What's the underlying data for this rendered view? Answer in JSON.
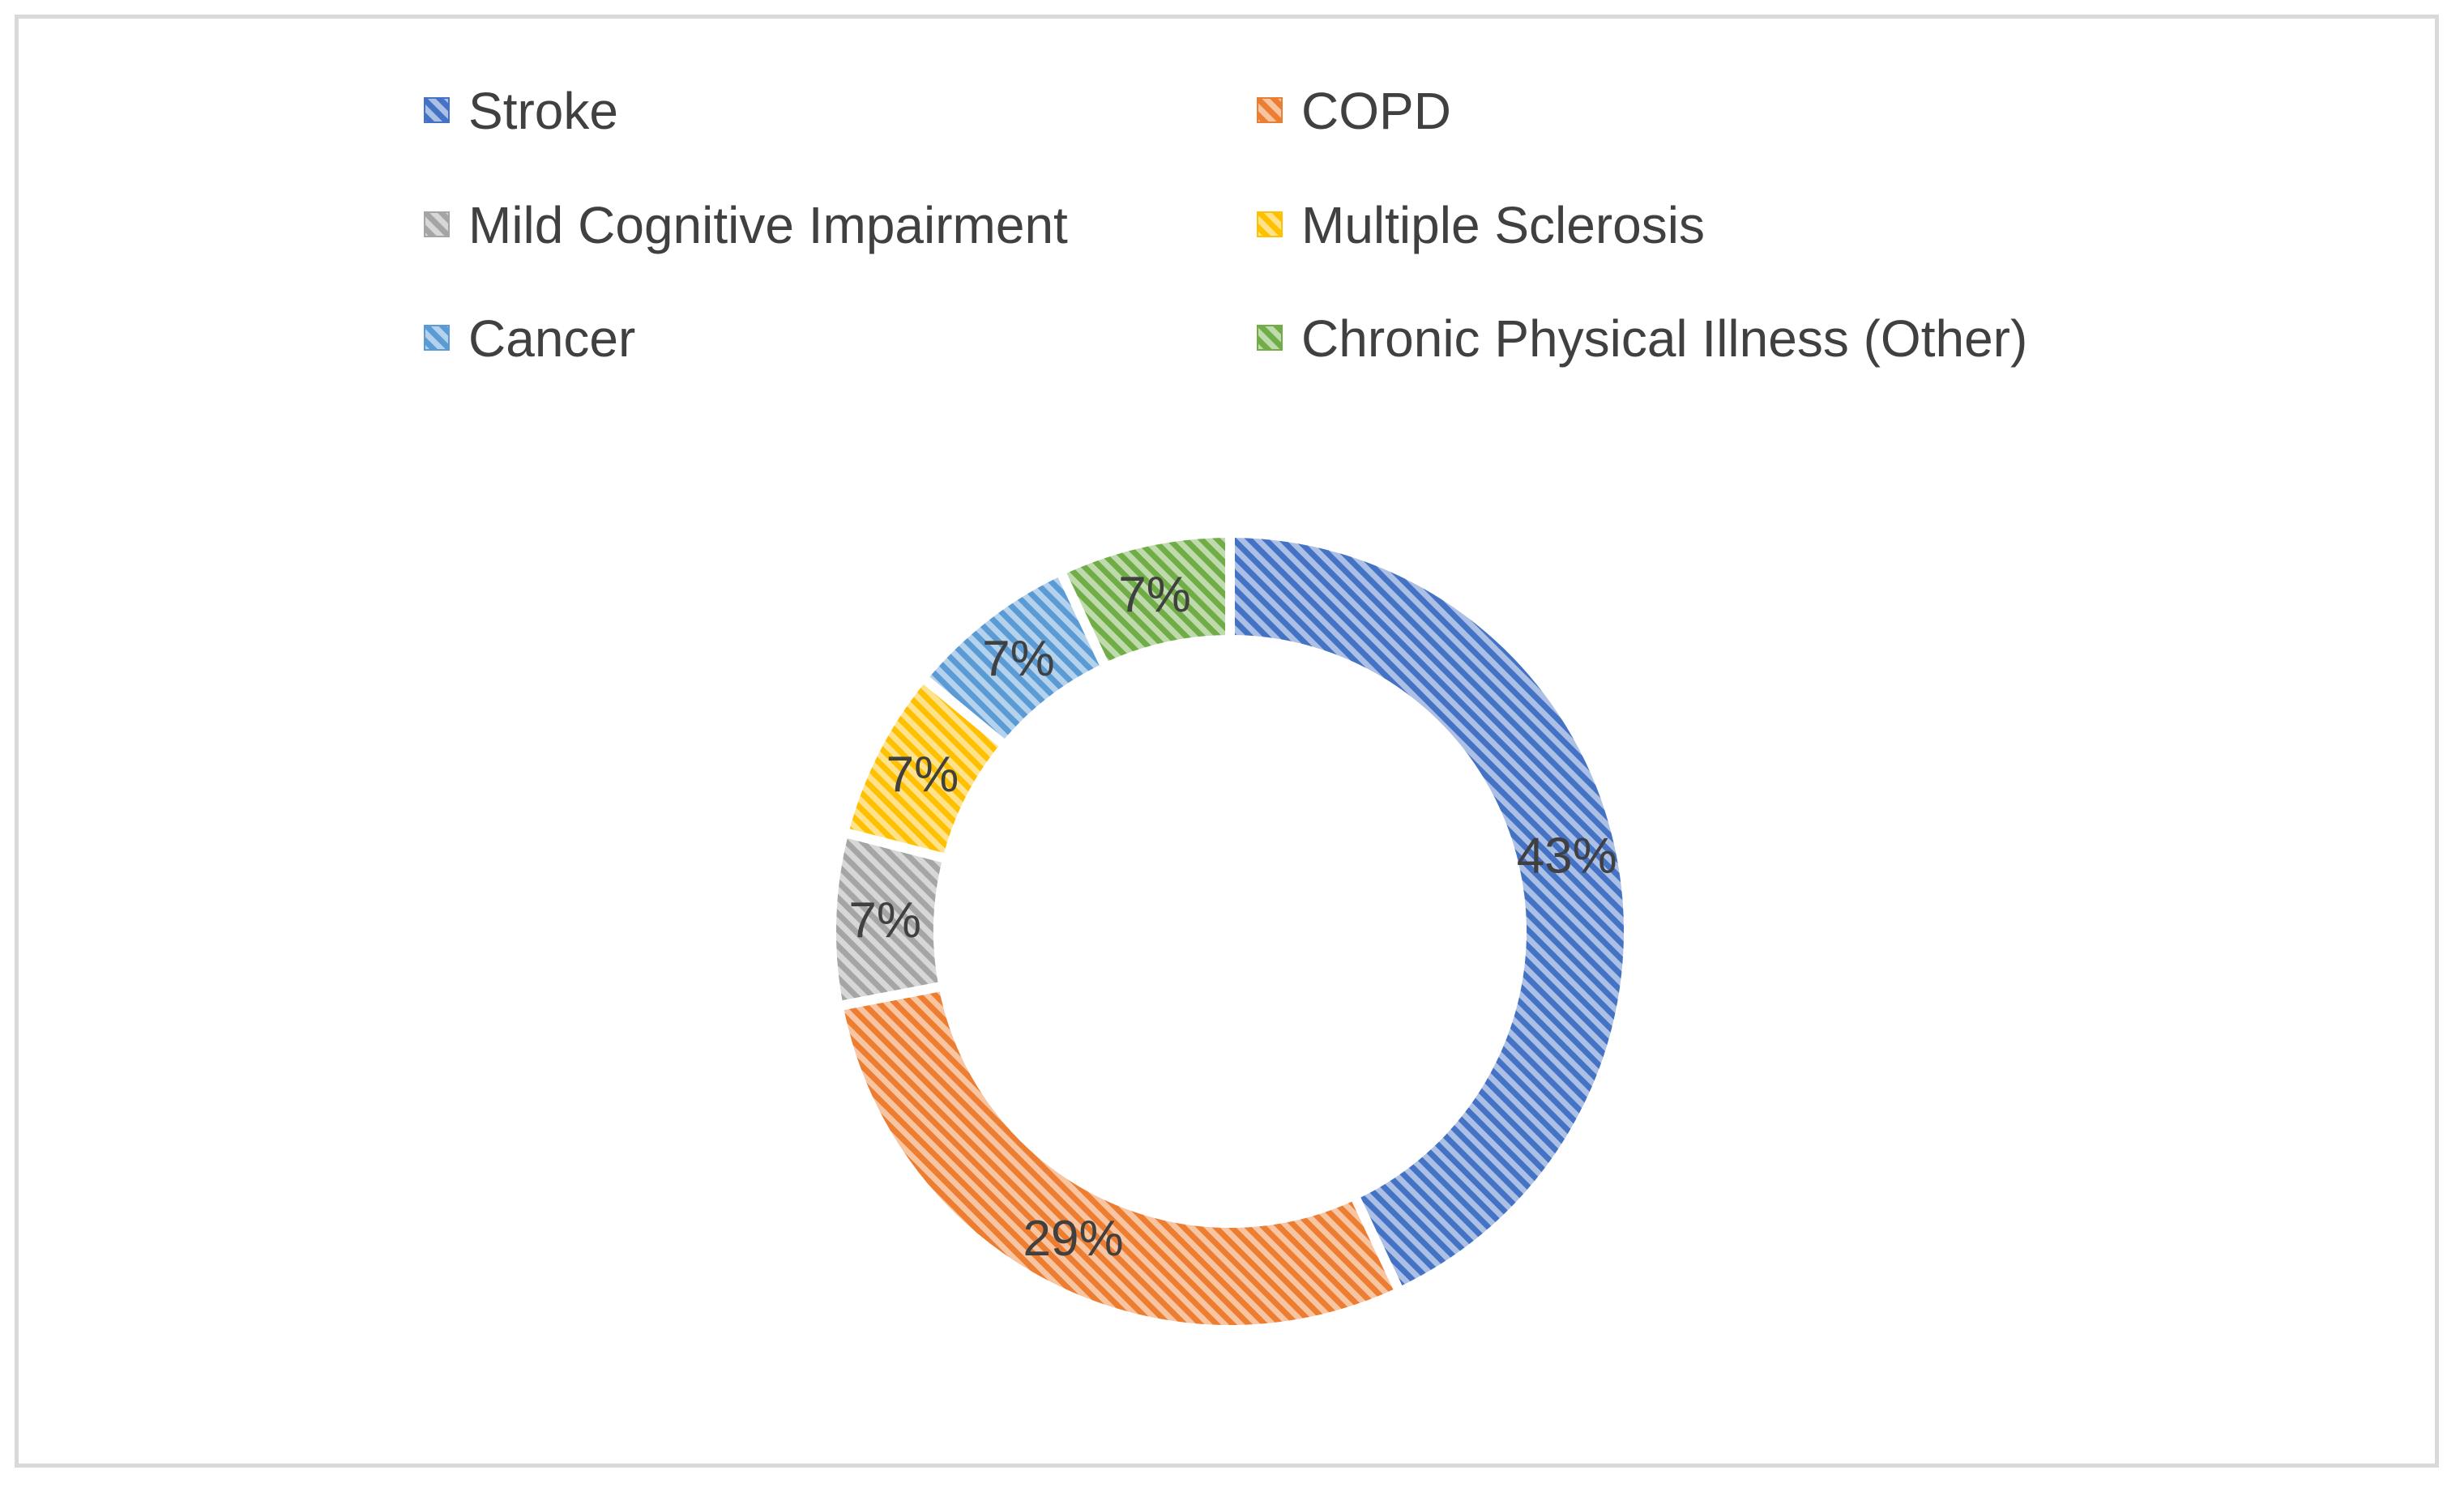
{
  "chart_data": {
    "type": "doughnut",
    "categories": [
      "Stroke",
      "COPD",
      "Mild Cognitive Impairment",
      "Multiple Sclerosis",
      "Cancer",
      "Chronic Physical Illness (Other)"
    ],
    "values": [
      43,
      29,
      7,
      7,
      7,
      7
    ],
    "data_labels": [
      "43%",
      "29%",
      "7%",
      "7%",
      "7%",
      "7%"
    ],
    "colors": [
      "#4472c4",
      "#ed7d31",
      "#a5a5a5",
      "#ffc000",
      "#5b9bd5",
      "#70ad47"
    ],
    "fill_pattern": "diagonal-hatch",
    "legend": {
      "position": "top",
      "items": [
        "Stroke",
        "COPD",
        "Mild Cognitive Impairment",
        "Multiple Sclerosis",
        "Cancer",
        "Chronic Physical Illness (Other)"
      ]
    },
    "title": ""
  }
}
